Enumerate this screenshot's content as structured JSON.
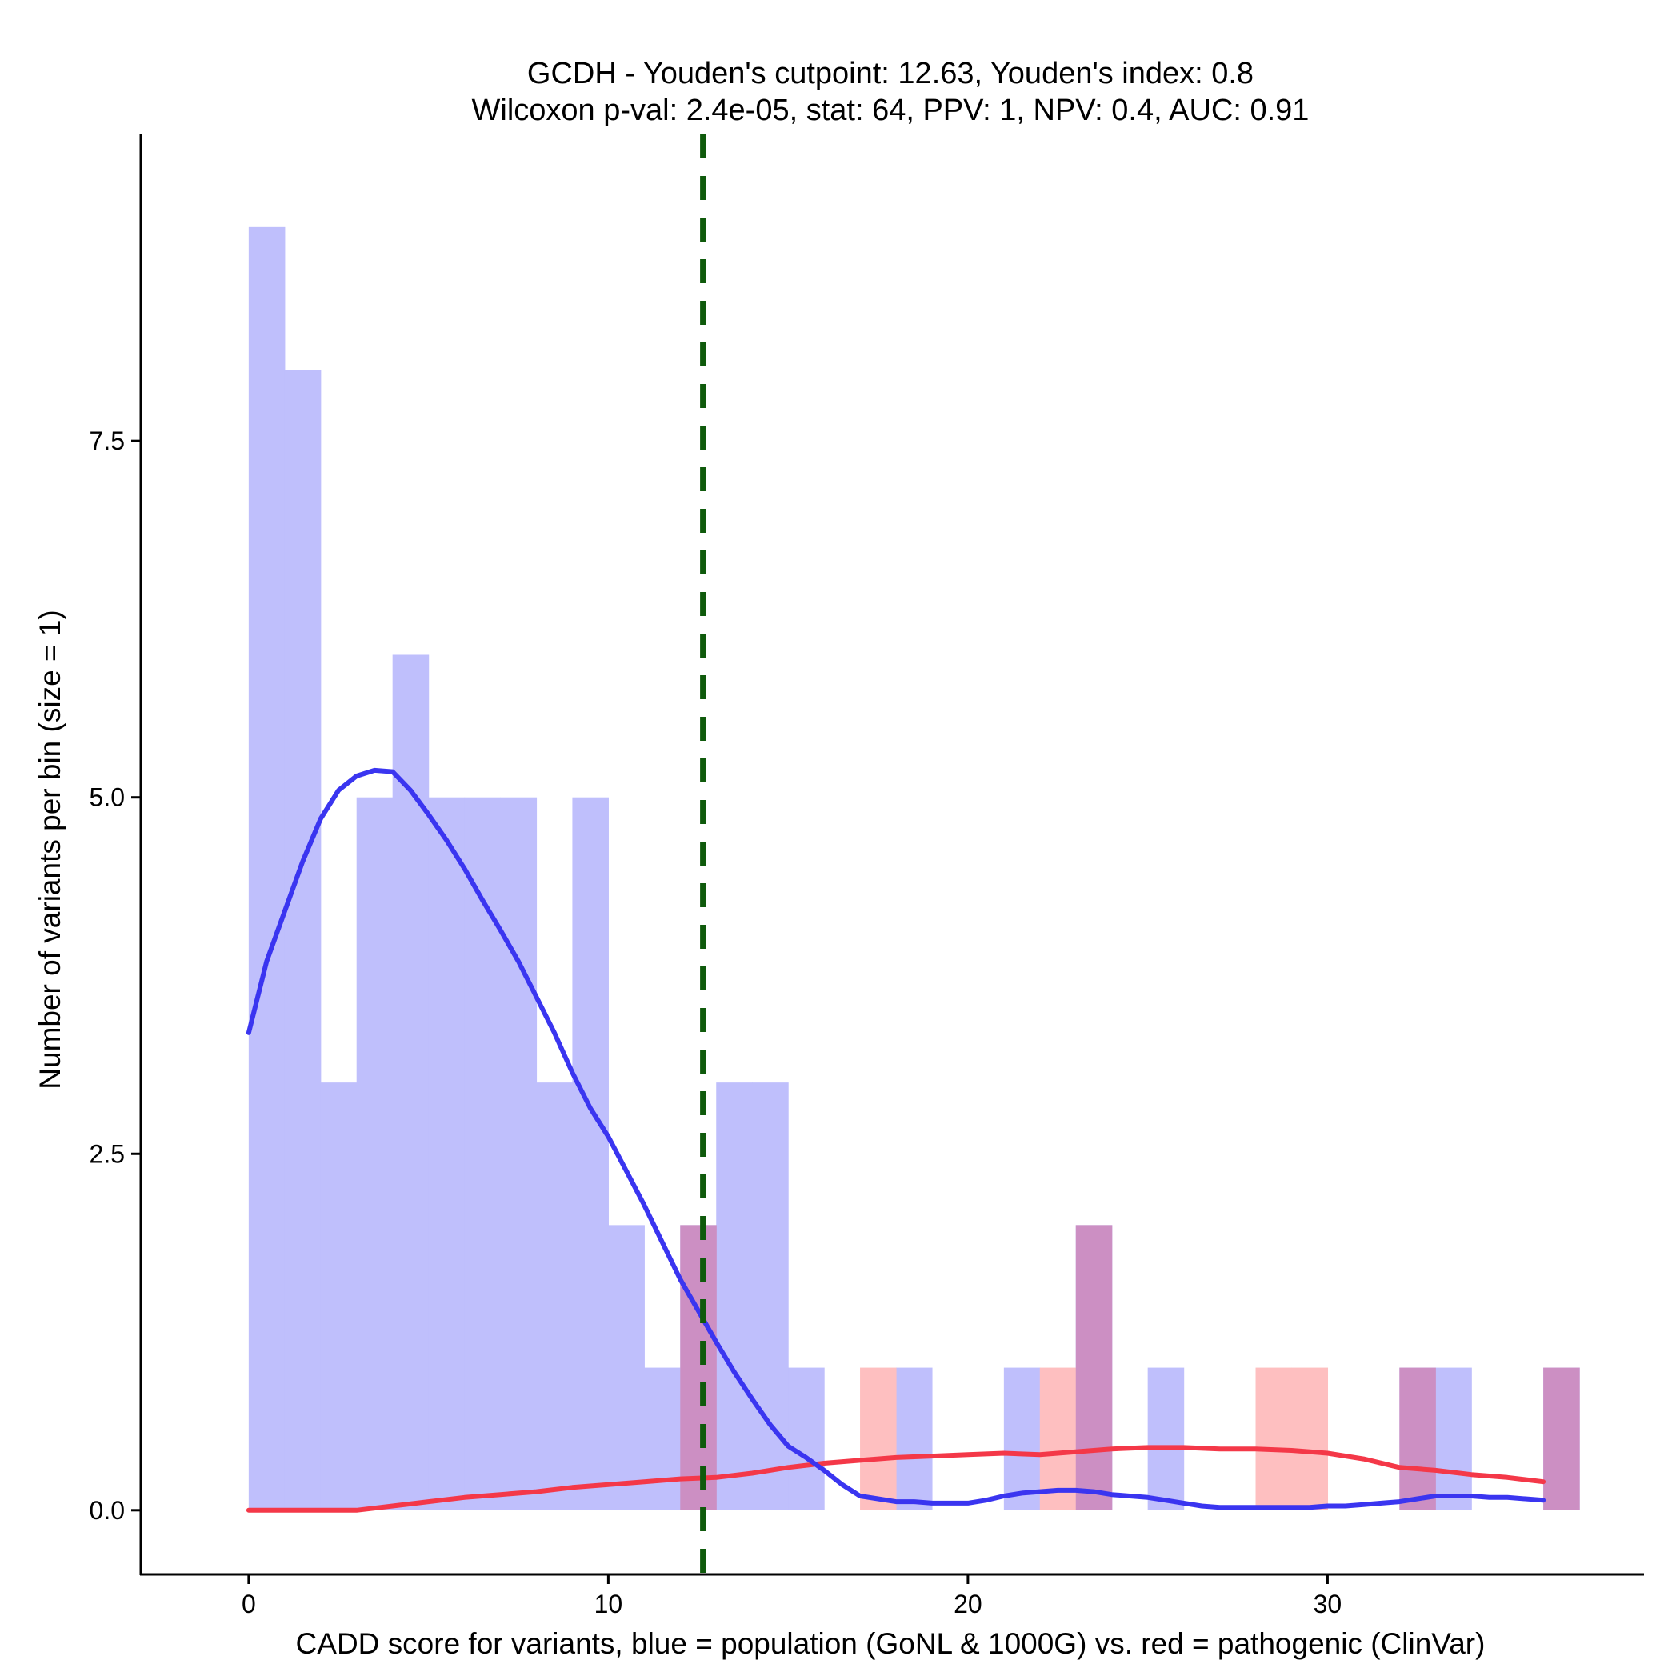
{
  "chart_data": {
    "type": "bar",
    "title": "GCDH - Youden's cutpoint: 12.63, Youden's index: 0.8",
    "subtitle": "Wilcoxon p-val: 2.4e-05, stat: 64, PPV: 1, NPV: 0.4, AUC: 0.91",
    "xlabel": "CADD score for variants, blue = population (GoNL & 1000G) vs. red = pathogenic (ClinVar)",
    "ylabel": "Number of variants per bin (size = 1)",
    "xlim": [
      -3,
      38.8
    ],
    "ylim": [
      -0.45,
      9.65
    ],
    "x_ticks": [
      0,
      10,
      20,
      30
    ],
    "x_tick_labels": [
      "0",
      "10",
      "20",
      "30"
    ],
    "y_ticks": [
      0,
      2.5,
      5,
      7.5
    ],
    "y_tick_labels": [
      "0.0",
      "2.5",
      "5.0",
      "7.5"
    ],
    "bin_width": 1,
    "cutpoint": 12.63,
    "colors": {
      "population_bar": "#bfbffc",
      "pathogenic_bar": "#febfc0",
      "overlap_bar": "#cc8fc3",
      "population_density": "#3a35f0",
      "pathogenic_density": "#f43848",
      "cutpoint_line": "#0f5a0c"
    },
    "series": [
      {
        "name": "population (GoNL & 1000G)",
        "bin_starts": [
          0,
          1,
          2,
          3,
          4,
          5,
          6,
          7,
          8,
          9,
          10,
          11,
          12,
          13,
          14,
          15,
          18,
          21,
          23,
          25,
          32,
          33,
          36
        ],
        "values": [
          9,
          8,
          3,
          5,
          6,
          5,
          5,
          5,
          3,
          5,
          2,
          1,
          2,
          3,
          3,
          1,
          1,
          1,
          2,
          1,
          1,
          1,
          1
        ]
      },
      {
        "name": "pathogenic (ClinVar)",
        "bin_starts": [
          12,
          17,
          22,
          23,
          28,
          29,
          32,
          36
        ],
        "values": [
          2,
          1,
          1,
          2,
          1,
          1,
          1,
          1
        ]
      }
    ],
    "density": [
      {
        "name": "population density",
        "x": [
          0,
          0.5,
          1,
          1.5,
          2,
          2.5,
          3,
          3.5,
          4,
          4.5,
          5,
          5.5,
          6,
          6.5,
          7,
          7.5,
          8,
          8.5,
          9,
          9.5,
          10,
          10.5,
          11,
          11.5,
          12,
          12.5,
          13,
          13.5,
          14,
          14.5,
          15,
          15.5,
          16,
          16.5,
          17,
          17.5,
          18,
          18.5,
          19,
          19.5,
          20,
          20.5,
          21,
          21.5,
          22,
          22.5,
          23,
          23.5,
          24,
          24.5,
          25,
          25.5,
          26,
          26.5,
          27,
          27.5,
          28,
          28.5,
          29,
          29.5,
          30,
          30.5,
          31,
          31.5,
          32,
          32.5,
          33,
          33.5,
          34,
          34.5,
          35,
          35.5,
          36
        ],
        "y": [
          3.35,
          3.85,
          4.2,
          4.55,
          4.85,
          5.05,
          5.15,
          5.19,
          5.18,
          5.05,
          4.88,
          4.7,
          4.5,
          4.28,
          4.07,
          3.85,
          3.6,
          3.35,
          3.07,
          2.82,
          2.62,
          2.38,
          2.14,
          1.88,
          1.62,
          1.4,
          1.18,
          0.97,
          0.78,
          0.6,
          0.45,
          0.37,
          0.28,
          0.18,
          0.1,
          0.08,
          0.06,
          0.06,
          0.05,
          0.05,
          0.05,
          0.07,
          0.1,
          0.12,
          0.13,
          0.14,
          0.14,
          0.13,
          0.11,
          0.1,
          0.09,
          0.07,
          0.05,
          0.03,
          0.02,
          0.02,
          0.02,
          0.02,
          0.02,
          0.02,
          0.03,
          0.03,
          0.04,
          0.05,
          0.06,
          0.08,
          0.1,
          0.1,
          0.1,
          0.09,
          0.09,
          0.08,
          0.07
        ]
      },
      {
        "name": "pathogenic density",
        "x": [
          0,
          1,
          2,
          3,
          4,
          5,
          6,
          7,
          8,
          9,
          10,
          11,
          12,
          13,
          14,
          15,
          16,
          17,
          18,
          19,
          20,
          21,
          22,
          23,
          24,
          25,
          26,
          27,
          28,
          29,
          30,
          31,
          32,
          33,
          34,
          35,
          36
        ],
        "y": [
          0,
          0,
          0,
          0,
          0.03,
          0.06,
          0.09,
          0.11,
          0.13,
          0.16,
          0.18,
          0.2,
          0.22,
          0.23,
          0.26,
          0.3,
          0.33,
          0.35,
          0.37,
          0.38,
          0.39,
          0.4,
          0.39,
          0.41,
          0.43,
          0.44,
          0.44,
          0.43,
          0.43,
          0.42,
          0.4,
          0.36,
          0.3,
          0.28,
          0.25,
          0.23,
          0.2
        ]
      }
    ]
  }
}
